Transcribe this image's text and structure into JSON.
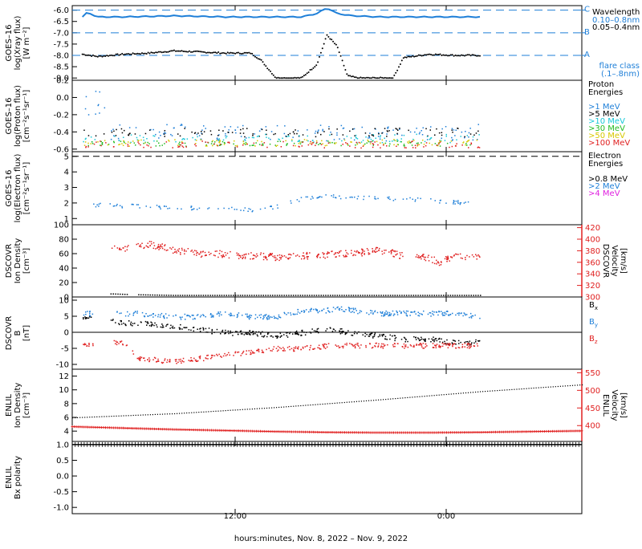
{
  "x_axis": {
    "title": "hours:minutes, Nov.  8, 2022 – Nov.  9, 2022",
    "ticks": [
      "12:00",
      "0:00"
    ]
  },
  "colors": {
    "black": "#000000",
    "blue": "#1e7fd8",
    "cyan": "#18c8d8",
    "green": "#22bb22",
    "yellow": "#d8c800",
    "orange": "#f08000",
    "red": "#e02020",
    "magenta": "#e020e0",
    "teal": "#1aa5a5"
  },
  "chart_data": [
    {
      "type": "line",
      "ylabel": "GOES–16 log(Xray flux) [W m⁻²]",
      "ylim": [
        -9.1,
        -5.8
      ],
      "yticks": [
        "-6.0",
        "-6.5",
        "-7.0",
        "-7.5",
        "-8.0",
        "-8.5",
        "-9.0"
      ],
      "flare_levels": [
        {
          "label": "C",
          "value": -6.0
        },
        {
          "label": "B",
          "value": -7.0
        },
        {
          "label": "A",
          "value": -8.0
        }
      ],
      "legend": {
        "title": "Wavelength",
        "entries": [
          "0.10–0.8nm",
          "0.05–0.4nm"
        ],
        "note": "flare class (.1–.8nm)"
      },
      "series": [
        {
          "name": "0.10–0.8nm",
          "color": "blue",
          "x": [
            0.02,
            0.03,
            0.05,
            0.1,
            0.2,
            0.3,
            0.4,
            0.45,
            0.48,
            0.5,
            0.52,
            0.55,
            0.6,
            0.7,
            0.8
          ],
          "y": [
            -6.3,
            -6.1,
            -6.3,
            -6.3,
            -6.25,
            -6.3,
            -6.3,
            -6.3,
            -6.15,
            -5.9,
            -6.15,
            -6.25,
            -6.3,
            -6.3,
            -6.3
          ]
        },
        {
          "name": "0.05–0.4nm",
          "color": "black",
          "x": [
            0.02,
            0.05,
            0.1,
            0.15,
            0.2,
            0.25,
            0.3,
            0.35,
            0.37,
            0.4,
            0.45,
            0.48,
            0.5,
            0.52,
            0.54,
            0.56,
            0.6,
            0.63,
            0.65,
            0.7,
            0.75,
            0.8
          ],
          "y": [
            -7.95,
            -8.05,
            -7.95,
            -7.9,
            -7.8,
            -7.85,
            -7.9,
            -7.9,
            -8.2,
            -9.0,
            -9.0,
            -8.4,
            -7.1,
            -7.6,
            -8.9,
            -9.0,
            -9.0,
            -9.0,
            -8.1,
            -7.95,
            -8.0,
            -8.0
          ]
        }
      ]
    },
    {
      "type": "scatter",
      "ylabel": "GOES–16 log(Proton flux) [cm⁻²s⁻¹sr⁻¹]",
      "ylim": [
        -0.63,
        0.2
      ],
      "yticks": [
        "0.2",
        "0.0",
        "-0.2",
        "-0.4",
        "-0.6"
      ],
      "legend": {
        "title": "Proton Energies",
        "entries": [
          ">1 MeV",
          ">5 MeV",
          ">10 MeV",
          ">30 MeV",
          ">50 MeV",
          ">100 MeV"
        ]
      },
      "series": [
        {
          "name": ">1 MeV",
          "color": "blue",
          "range": [
            -0.5,
            -0.3
          ],
          "early_max": 0.08
        },
        {
          "name": ">5 MeV",
          "color": "black",
          "range": [
            -0.45,
            -0.35
          ]
        },
        {
          "name": ">10 MeV",
          "color": "cyan",
          "range": [
            -0.52,
            -0.42
          ]
        },
        {
          "name": ">30 MeV",
          "color": "green",
          "range": [
            -0.56,
            -0.5
          ]
        },
        {
          "name": ">50 MeV",
          "color": "yellow",
          "range": [
            -0.56,
            -0.48
          ]
        },
        {
          "name": ">100 MeV",
          "color": "red",
          "range": [
            -0.58,
            -0.5
          ]
        }
      ]
    },
    {
      "type": "scatter",
      "ylabel": "GOES–16 log(Electron flux) [cm⁻²s⁻¹sr⁻¹]",
      "ylim": [
        0.6,
        5.3
      ],
      "yticks": [
        "5",
        "4",
        "3",
        "2",
        "1"
      ],
      "legend": {
        "title": "Electron Energies",
        "entries": [
          ">0.8 MeV",
          ">2 MeV",
          ">4 MeV"
        ]
      },
      "reference_lines": [
        {
          "value": 5.0,
          "style": "dashed"
        },
        {
          "value": 0.6,
          "color": "teal"
        }
      ],
      "series": [
        {
          "name": ">2 MeV",
          "color": "blue",
          "x": [
            0.05,
            0.15,
            0.25,
            0.35,
            0.4,
            0.45,
            0.5,
            0.55,
            0.6,
            0.65,
            0.7,
            0.75,
            0.8
          ],
          "y": [
            1.9,
            1.8,
            1.7,
            1.6,
            1.8,
            2.3,
            2.45,
            2.4,
            2.35,
            2.3,
            2.2,
            2.1,
            1.9
          ]
        }
      ]
    },
    {
      "type": "scatter",
      "ylabel": "DSCOVR Ion Density [cm⁻³]",
      "ylabel_right": "DSCOVR Velocity [km/s]",
      "ylim": [
        0,
        100
      ],
      "yticks": [
        "100",
        "80",
        "60",
        "40",
        "20",
        "0"
      ],
      "ylim_right": [
        300,
        425
      ],
      "yticks_right": [
        "420",
        "400",
        "380",
        "360",
        "340",
        "320",
        "300"
      ],
      "series": [
        {
          "name": "Ion Density",
          "color": "black",
          "x": [
            0.08,
            0.12,
            0.2,
            0.3,
            0.4,
            0.5,
            0.6,
            0.65,
            0.7,
            0.8
          ],
          "y": [
            5,
            4,
            3,
            3,
            3,
            3,
            3,
            3,
            3,
            3
          ]
        },
        {
          "name": "Velocity",
          "color": "red",
          "x": [
            0.08,
            0.12,
            0.15,
            0.2,
            0.25,
            0.3,
            0.35,
            0.4,
            0.45,
            0.5,
            0.55,
            0.6,
            0.65,
            0.7,
            0.72,
            0.75,
            0.8
          ],
          "y": [
            388,
            385,
            393,
            382,
            376,
            375,
            372,
            370,
            372,
            374,
            376,
            382,
            372,
            368,
            360,
            372,
            368
          ]
        }
      ]
    },
    {
      "type": "scatter",
      "ylabel": "DSCOVR B [nT]",
      "ylim": [
        -11.5,
        11
      ],
      "yticks": [
        "10",
        "5",
        "0",
        "-5",
        "-10"
      ],
      "legend": {
        "entries": [
          "Bx",
          "By",
          "Bz"
        ]
      },
      "series": [
        {
          "name": "Bx",
          "color": "black",
          "x": [
            0.02,
            0.1,
            0.13,
            0.2,
            0.25,
            0.3,
            0.35,
            0.4,
            0.45,
            0.5,
            0.55,
            0.6,
            0.65,
            0.7,
            0.75,
            0.8
          ],
          "y": [
            5,
            3,
            3,
            2,
            1,
            0,
            0,
            -1,
            0,
            1,
            0,
            -1,
            -2,
            -2,
            -3,
            -3
          ]
        },
        {
          "name": "By",
          "color": "blue",
          "x": [
            0.02,
            0.1,
            0.13,
            0.2,
            0.25,
            0.3,
            0.35,
            0.4,
            0.45,
            0.5,
            0.52,
            0.55,
            0.6,
            0.65,
            0.7,
            0.75,
            0.8
          ],
          "y": [
            6,
            6,
            6,
            5,
            5,
            6,
            5,
            5,
            7,
            7,
            7.5,
            7,
            6,
            6,
            6,
            6,
            5
          ]
        },
        {
          "name": "Bz",
          "color": "red",
          "x": [
            0.02,
            0.1,
            0.13,
            0.2,
            0.25,
            0.3,
            0.35,
            0.4,
            0.45,
            0.5,
            0.55,
            0.6,
            0.65,
            0.7,
            0.75,
            0.8
          ],
          "y": [
            -4,
            -3,
            -8,
            -9,
            -8,
            -7,
            -6,
            -5,
            -5,
            -4,
            -4,
            -4,
            -4,
            -4,
            -4,
            -4
          ]
        }
      ]
    },
    {
      "type": "line",
      "ylabel": "ENLIL Ion Density [cm⁻³]",
      "ylabel_right": "ENLIL Velocity [km/s]",
      "ylim": [
        2.5,
        13
      ],
      "yticks": [
        "12",
        "10",
        "8",
        "6",
        "4"
      ],
      "ylim_right": [
        355,
        560
      ],
      "yticks_right": [
        "550",
        "500",
        "450",
        "400"
      ],
      "series": [
        {
          "name": "Ion Density",
          "color": "black",
          "x": [
            0.0,
            0.2,
            0.4,
            0.6,
            0.8,
            1.0
          ],
          "y": [
            6.0,
            6.6,
            7.5,
            8.6,
            9.8,
            10.8
          ]
        },
        {
          "name": "Velocity",
          "color": "red",
          "x": [
            0.0,
            0.1,
            0.2,
            0.3,
            0.4,
            0.5,
            0.6,
            0.7,
            0.8,
            0.9,
            1.0
          ],
          "y": [
            397,
            393,
            389,
            386,
            383,
            381,
            380,
            380,
            381,
            383,
            385
          ]
        }
      ]
    },
    {
      "type": "line",
      "ylabel": "ENLIL Bx polarity",
      "ylim": [
        -1.2,
        1.1
      ],
      "yticks": [
        "1.0",
        "0.5",
        "0.0",
        "-0.5",
        "-1.0"
      ],
      "series": [
        {
          "name": "Bx polarity",
          "color": "black",
          "x": [
            0.0,
            1.0
          ],
          "y": [
            1.0,
            1.0
          ]
        }
      ]
    }
  ]
}
